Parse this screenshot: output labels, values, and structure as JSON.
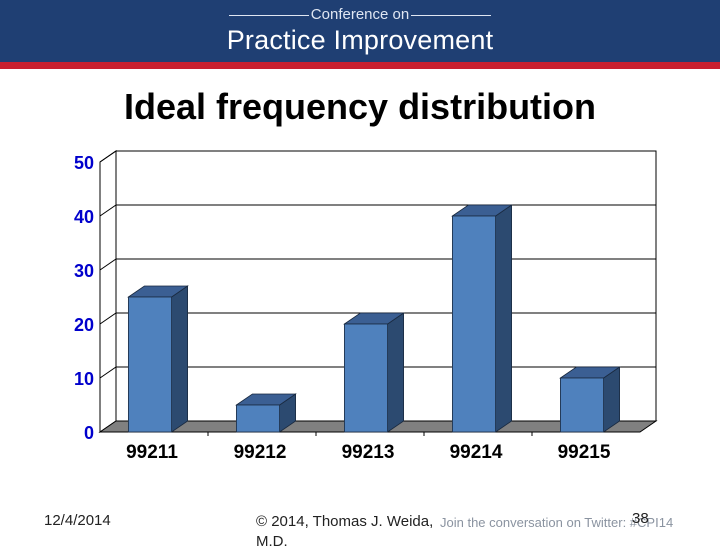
{
  "banner": {
    "subtitle": "Conference on",
    "title": "Practice Improvement"
  },
  "slide": {
    "title": "Ideal frequency distribution"
  },
  "chart_data": {
    "type": "bar",
    "title": "",
    "categories": [
      "99211",
      "99212",
      "99213",
      "99214",
      "99215"
    ],
    "values": [
      25,
      5,
      20,
      40,
      10
    ],
    "xlabel": "",
    "ylabel": "",
    "ylim": [
      0,
      50
    ],
    "yticks": [
      "0",
      "10",
      "20",
      "30",
      "40",
      "50"
    ],
    "grid": true,
    "legend": "none",
    "style": "3d",
    "colors": {
      "bar_front": "#4f81bd",
      "bar_side": "#2c4a70",
      "bar_top": "#3b5f93",
      "floor": "#808080",
      "tick_label": "#0000cc"
    }
  },
  "footer": {
    "date": "12/4/2014",
    "copyright": "© 2014, Thomas J. Weida, M.D.",
    "twitter": "Join the conversation on Twitter: #CPI14",
    "page": "38"
  }
}
